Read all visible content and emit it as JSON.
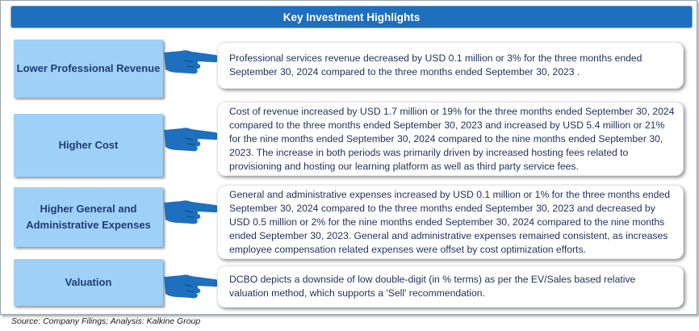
{
  "header": {
    "title": "Key Investment Highlights"
  },
  "rows": [
    {
      "label": "Lower Professional Revenue",
      "text": "Professional services revenue decreased by USD 0.1 million or 3% for the three months ended September 30, 2024 compared to the three months ended September 30, 2023 ."
    },
    {
      "label": "Higher Cost",
      "text": "Cost of revenue increased by USD 1.7 million or 19% for the three months ended September 30, 2024 compared to the three months ended September 30, 2023 and increased by USD 5.4 million or 21% for the nine months ended September 30, 2024 compared to the nine months ended September 30, 2023. The increase in both periods was primarily driven by increased hosting fees related to provisioning and hosting our learning platform as well as third party service fees."
    },
    {
      "label": "Higher General and Administrative Expenses",
      "text": "General and administrative expenses increased by USD 0.1 million or 1% for the three months ended September 30, 2024 compared to the three months ended September 30, 2023 and decreased by USD 0.5 million or 2% for the nine months ended September 30, 2024 compared to the nine months ended September 30, 2023. General and administrative expenses remained consistent, as increases employee compensation related expenses were offset by cost optimization efforts."
    },
    {
      "label": "Valuation",
      "text": "DCBO  depicts a downside of low double-digit (in % terms) as per the EV/Sales based relative valuation method, which supports a 'Sell' recommendation."
    }
  ],
  "source": "Source: Company Filings; Analysis: Kalkine Group",
  "colors": {
    "header": "#1e6fbd",
    "label_bg": "#9fd0f7",
    "label_text": "#1f3b77",
    "hand": "#1e6fbd"
  },
  "icons": {
    "pointer": "pointing-hand-icon"
  }
}
